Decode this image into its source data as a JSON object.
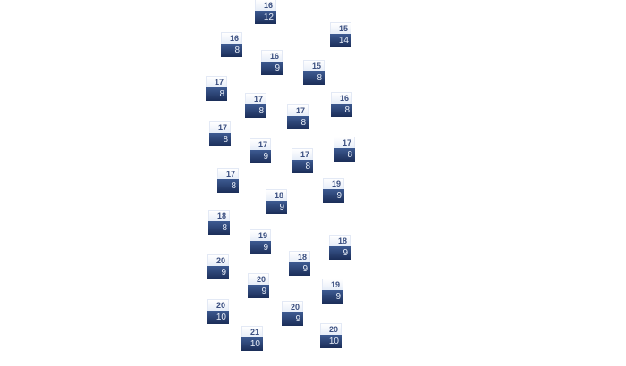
{
  "tiles": [
    {
      "top": "16",
      "bottom": "12"
    },
    {
      "top": "15",
      "bottom": "14"
    },
    {
      "top": "16",
      "bottom": "8"
    },
    {
      "top": "16",
      "bottom": "9"
    },
    {
      "top": "15",
      "bottom": "8"
    },
    {
      "top": "17",
      "bottom": "8"
    },
    {
      "top": "17",
      "bottom": "8"
    },
    {
      "top": "16",
      "bottom": "8"
    },
    {
      "top": "17",
      "bottom": "8"
    },
    {
      "top": "17",
      "bottom": "8"
    },
    {
      "top": "17",
      "bottom": "9"
    },
    {
      "top": "17",
      "bottom": "8"
    },
    {
      "top": "17",
      "bottom": "8"
    },
    {
      "top": "17",
      "bottom": "8"
    },
    {
      "top": "19",
      "bottom": "9"
    },
    {
      "top": "18",
      "bottom": "9"
    },
    {
      "top": "18",
      "bottom": "8"
    },
    {
      "top": "19",
      "bottom": "9"
    },
    {
      "top": "18",
      "bottom": "9"
    },
    {
      "top": "18",
      "bottom": "9"
    },
    {
      "top": "20",
      "bottom": "9"
    },
    {
      "top": "20",
      "bottom": "9"
    },
    {
      "top": "19",
      "bottom": "9"
    },
    {
      "top": "20",
      "bottom": "10"
    },
    {
      "top": "20",
      "bottom": "9"
    },
    {
      "top": "21",
      "bottom": "10"
    },
    {
      "top": "20",
      "bottom": "10"
    }
  ],
  "colors": {
    "top_text": "#3b4f80",
    "bottom_bg": "#2a4275"
  }
}
